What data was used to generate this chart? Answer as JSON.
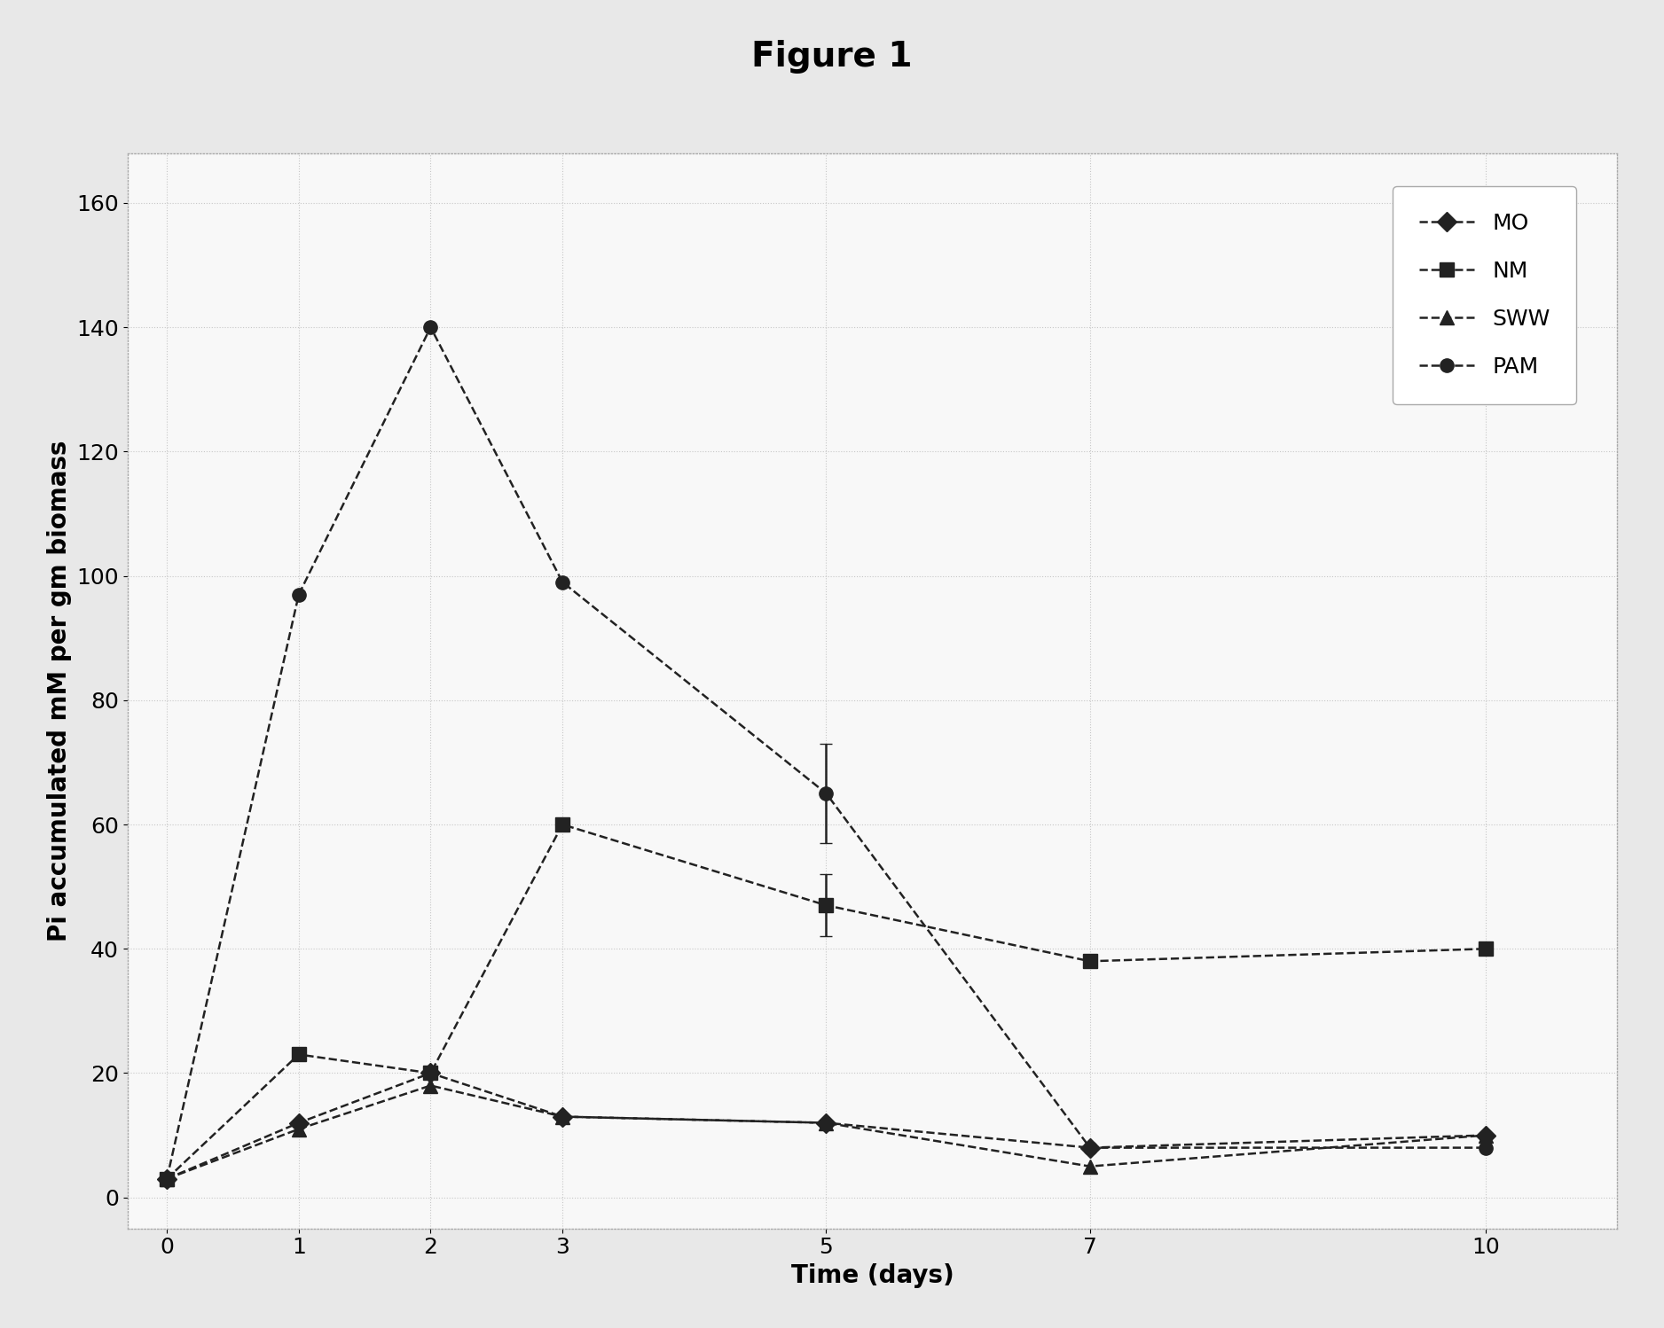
{
  "title": "Figure 1",
  "xlabel": "Time (days)",
  "ylabel": "Pi accumulated mM per gm biomass",
  "x_ticks": [
    0,
    1,
    2,
    3,
    5,
    7,
    10
  ],
  "xlim": [
    -0.3,
    11
  ],
  "ylim": [
    -5,
    168
  ],
  "yticks": [
    0,
    20,
    40,
    60,
    80,
    100,
    120,
    140,
    160
  ],
  "series": {
    "MO": {
      "x": [
        0,
        1,
        2,
        3,
        5,
        7,
        10
      ],
      "y": [
        3,
        12,
        20,
        13,
        12,
        8,
        10
      ],
      "color": "#222222",
      "marker": "D",
      "linestyle": "--"
    },
    "NM": {
      "x": [
        0,
        1,
        2,
        3,
        5,
        7,
        10
      ],
      "y": [
        3,
        23,
        20,
        60,
        47,
        38,
        40
      ],
      "color": "#222222",
      "marker": "s",
      "linestyle": "--"
    },
    "SWW": {
      "x": [
        0,
        1,
        2,
        3,
        5,
        7,
        10
      ],
      "y": [
        3,
        11,
        18,
        13,
        12,
        5,
        10
      ],
      "color": "#222222",
      "marker": "^",
      "linestyle": "--"
    },
    "PAM": {
      "x": [
        0,
        1,
        2,
        3,
        5,
        7,
        10
      ],
      "y": [
        3,
        97,
        140,
        99,
        65,
        8,
        8
      ],
      "color": "#222222",
      "marker": "o",
      "linestyle": "--"
    }
  },
  "error_bars": {
    "PAM": {
      "x_idx": 4,
      "yerr": 8
    },
    "NM": {
      "x_idx": 4,
      "yerr": 5
    }
  },
  "background_color": "#e8e8e8",
  "plot_bg_color": "#f8f8f8",
  "outer_box_color": "#aaaaaa",
  "title_fontsize": 28,
  "label_fontsize": 20,
  "tick_fontsize": 18,
  "legend_fontsize": 18,
  "line_width": 1.8,
  "marker_size": 11
}
